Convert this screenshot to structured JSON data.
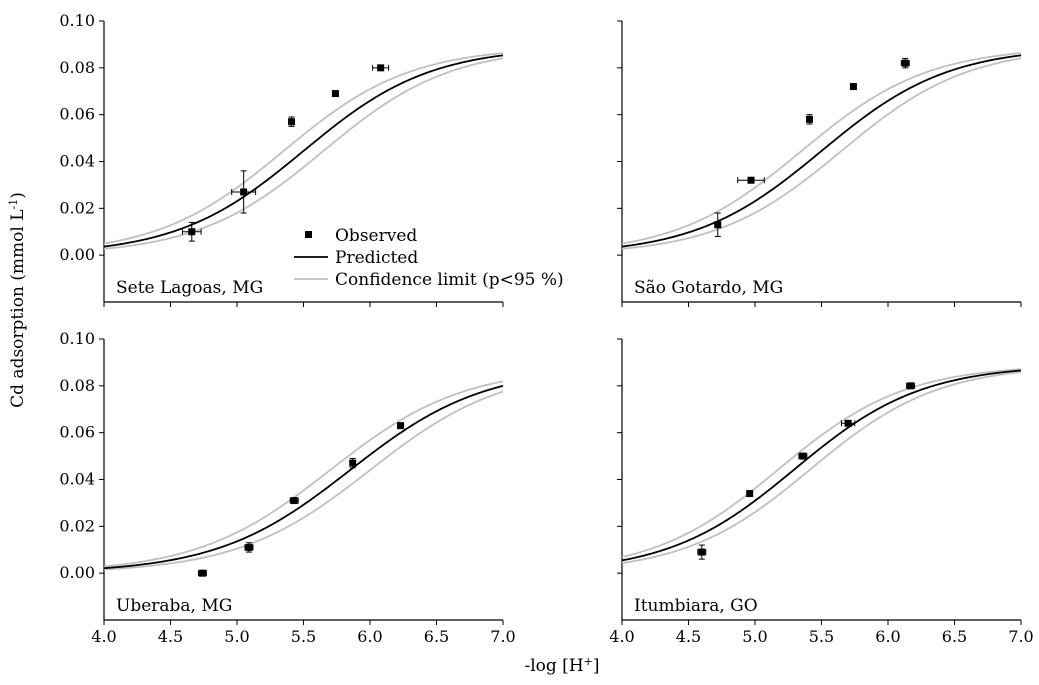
{
  "figure": {
    "ylabel_main": "Cd adsorption (mmol L",
    "ylabel_sup": "-1",
    "ylabel_close": ")",
    "xlabel_main": "-log [H",
    "xlabel_sup": "+",
    "xlabel_close": "]"
  },
  "legend": {
    "observed": "Observed",
    "predicted": "Predicted",
    "confidence": "Confidence limit (p<95 %)"
  },
  "colors": {
    "predicted": "#000000",
    "confidence": "#c0c0c0",
    "observed": "#000000"
  },
  "chart_data": [
    {
      "type": "scatter",
      "title": "Sete Lagoas, MG",
      "xlim": [
        4.0,
        7.0
      ],
      "ylim": [
        -0.02,
        0.1
      ],
      "xticks": [
        "4.0",
        "4.5",
        "5.0",
        "5.5",
        "6.0",
        "6.5",
        "7.0"
      ],
      "yticks": [
        "0.00",
        "0.02",
        "0.04",
        "0.06",
        "0.08",
        "0.10"
      ],
      "show_xtick_labels": false,
      "show_ytick_labels": true,
      "predicted": {
        "max": 0.089,
        "mid": 5.5,
        "slope": 2.1
      },
      "confidence_offset": 0.15,
      "observed": [
        {
          "x": 4.66,
          "y": 0.01,
          "xerr": 0.07,
          "yerr": 0.004
        },
        {
          "x": 5.05,
          "y": 0.027,
          "xerr": 0.09,
          "yerr": 0.009
        },
        {
          "x": 5.41,
          "y": 0.057,
          "xerr": 0.02,
          "yerr": 0.002
        },
        {
          "x": 5.74,
          "y": 0.069,
          "xerr": 0.02,
          "yerr": 0.001
        },
        {
          "x": 6.08,
          "y": 0.08,
          "xerr": 0.06,
          "yerr": 0.001
        }
      ]
    },
    {
      "type": "scatter",
      "title": "São Gotardo, MG",
      "xlim": [
        4.0,
        7.0
      ],
      "ylim": [
        -0.02,
        0.1
      ],
      "xticks": [
        "4.0",
        "4.5",
        "5.0",
        "5.5",
        "6.0",
        "6.5",
        "7.0"
      ],
      "yticks": [
        "0.00",
        "0.02",
        "0.04",
        "0.06",
        "0.08",
        "0.10"
      ],
      "show_xtick_labels": false,
      "show_ytick_labels": false,
      "predicted": {
        "max": 0.089,
        "mid": 5.5,
        "slope": 2.1
      },
      "confidence_offset": 0.15,
      "observed": [
        {
          "x": 4.72,
          "y": 0.013,
          "xerr": 0.0,
          "yerr": 0.005
        },
        {
          "x": 4.97,
          "y": 0.032,
          "xerr": 0.1,
          "yerr": 0.001
        },
        {
          "x": 5.41,
          "y": 0.058,
          "xerr": 0.02,
          "yerr": 0.002
        },
        {
          "x": 5.74,
          "y": 0.072,
          "xerr": 0.01,
          "yerr": 0.001
        },
        {
          "x": 6.13,
          "y": 0.082,
          "xerr": 0.03,
          "yerr": 0.002
        }
      ]
    },
    {
      "type": "scatter",
      "title": "Uberaba, MG",
      "xlim": [
        4.0,
        7.0
      ],
      "ylim": [
        -0.02,
        0.1
      ],
      "xticks": [
        "4.0",
        "4.5",
        "5.0",
        "5.5",
        "6.0",
        "6.5",
        "7.0"
      ],
      "yticks": [
        "0.00",
        "0.02",
        "0.04",
        "0.06",
        "0.08",
        "0.10"
      ],
      "show_xtick_labels": true,
      "show_ytick_labels": true,
      "predicted": {
        "max": 0.088,
        "mid": 5.85,
        "slope": 2.0
      },
      "confidence_offset": 0.15,
      "observed": [
        {
          "x": 4.74,
          "y": 0.0,
          "xerr": 0.03,
          "yerr": 0.001
        },
        {
          "x": 5.09,
          "y": 0.011,
          "xerr": 0.03,
          "yerr": 0.002
        },
        {
          "x": 5.43,
          "y": 0.031,
          "xerr": 0.03,
          "yerr": 0.001
        },
        {
          "x": 5.87,
          "y": 0.047,
          "xerr": 0.02,
          "yerr": 0.002
        },
        {
          "x": 6.23,
          "y": 0.063,
          "xerr": 0.02,
          "yerr": 0.001
        }
      ]
    },
    {
      "type": "scatter",
      "title": "Itumbiara, GO",
      "xlim": [
        4.0,
        7.0
      ],
      "ylim": [
        -0.02,
        0.1
      ],
      "xticks": [
        "4.0",
        "4.5",
        "5.0",
        "5.5",
        "6.0",
        "6.5",
        "7.0"
      ],
      "yticks": [
        "0.00",
        "0.02",
        "0.04",
        "0.06",
        "0.08",
        "0.10"
      ],
      "show_xtick_labels": true,
      "show_ytick_labels": false,
      "predicted": {
        "max": 0.089,
        "mid": 5.3,
        "slope": 2.1
      },
      "confidence_offset": 0.12,
      "observed": [
        {
          "x": 4.6,
          "y": 0.009,
          "xerr": 0.03,
          "yerr": 0.003
        },
        {
          "x": 4.96,
          "y": 0.034,
          "xerr": 0.02,
          "yerr": 0.001
        },
        {
          "x": 5.36,
          "y": 0.05,
          "xerr": 0.03,
          "yerr": 0.001
        },
        {
          "x": 5.7,
          "y": 0.064,
          "xerr": 0.05,
          "yerr": 0.001
        },
        {
          "x": 6.17,
          "y": 0.08,
          "xerr": 0.03,
          "yerr": 0.001
        }
      ]
    }
  ]
}
